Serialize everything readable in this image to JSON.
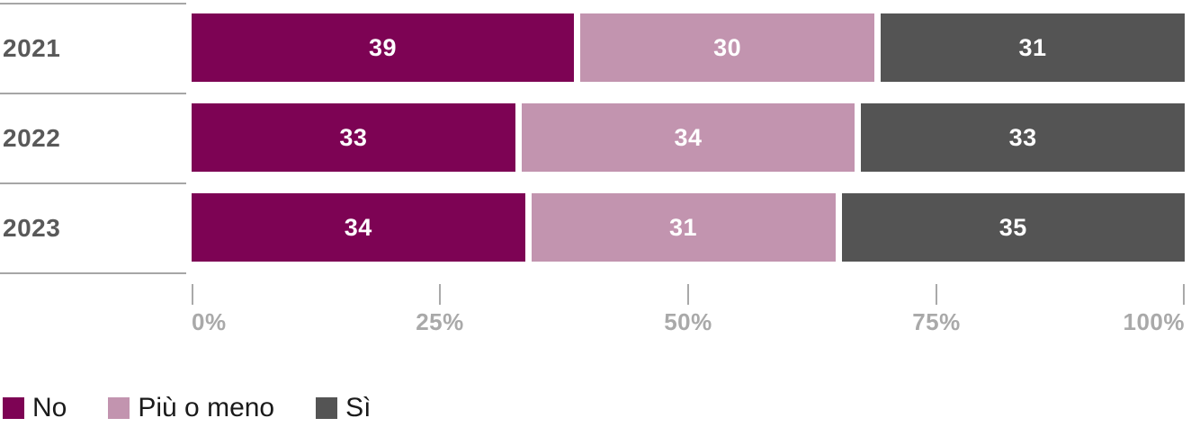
{
  "chart_data": {
    "type": "bar",
    "stacked": true,
    "orientation": "horizontal",
    "title": "",
    "categories": [
      "2021",
      "2022",
      "2023"
    ],
    "series": [
      {
        "name": "No",
        "color": "#7D0354",
        "values": [
          39,
          33,
          34
        ]
      },
      {
        "name": "Più o meno",
        "color": "#C294AF",
        "values": [
          30,
          34,
          31
        ]
      },
      {
        "name": "Sì",
        "color": "#545454",
        "values": [
          31,
          33,
          35
        ]
      }
    ],
    "value_labels_shown": true,
    "xlim": [
      0,
      100
    ],
    "x_tick_values": [
      0,
      25,
      50,
      75,
      100
    ],
    "x_tick_labels": [
      "0%",
      "25%",
      "50%",
      "75%",
      "100%"
    ],
    "grid": "off",
    "legend_position": "bottom"
  },
  "legend": {
    "entries": [
      {
        "label": "No",
        "color": "#7D0354"
      },
      {
        "label": "Più o meno",
        "color": "#C294AF"
      },
      {
        "label": "Sì",
        "color": "#545454"
      }
    ]
  },
  "style_colors": {
    "separator_line": "#a6a6a6",
    "category_label": "#595959",
    "axis_tick": "#a9a9a9",
    "axis_label": "#a9a9a9",
    "value_label": "#ffffff",
    "legend_text": "#1a1a1a",
    "background": "#ffffff"
  }
}
